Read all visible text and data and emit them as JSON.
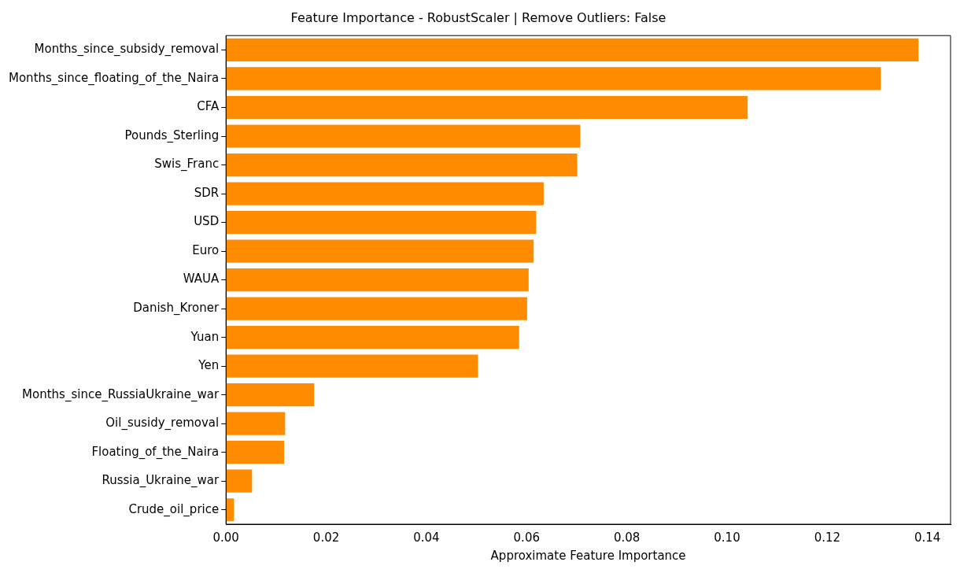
{
  "chart_data": {
    "type": "bar",
    "orientation": "horizontal",
    "title": "Feature Importance - RobustScaler | Remove Outliers: False",
    "xlabel": "Approximate Feature Importance",
    "categories": [
      "Months_since_subsidy_removal",
      "Months_since_floating_of_the_Naira",
      "CFA",
      "Pounds_Sterling",
      "Swis_Franc",
      "SDR",
      "USD",
      "Euro",
      "WAUA",
      "Danish_Kroner",
      "Yuan",
      "Yen",
      "Months_since_RussiaUkraine_war",
      "Oil_susidy_removal",
      "Floating_of_the_Naira",
      "Russia_Ukraine_war",
      "Crude_oil_price"
    ],
    "values": [
      0.1382,
      0.1307,
      0.1041,
      0.0707,
      0.0701,
      0.0634,
      0.0619,
      0.0614,
      0.0604,
      0.0601,
      0.0585,
      0.0503,
      0.0176,
      0.0118,
      0.0116,
      0.0052,
      0.0016
    ],
    "color": "#ff8c00",
    "xlim": [
      0,
      0.1446
    ],
    "xticks": [
      {
        "value": 0,
        "label": "0.00"
      },
      {
        "value": 0.02,
        "label": "0.02"
      },
      {
        "value": 0.04,
        "label": "0.04"
      },
      {
        "value": 0.06,
        "label": "0.06"
      },
      {
        "value": 0.08,
        "label": "0.08"
      },
      {
        "value": 0.1,
        "label": "0.10"
      },
      {
        "value": 0.12,
        "label": "0.12"
      },
      {
        "value": 0.14,
        "label": "0.14"
      }
    ],
    "grid": false,
    "legend": false
  }
}
